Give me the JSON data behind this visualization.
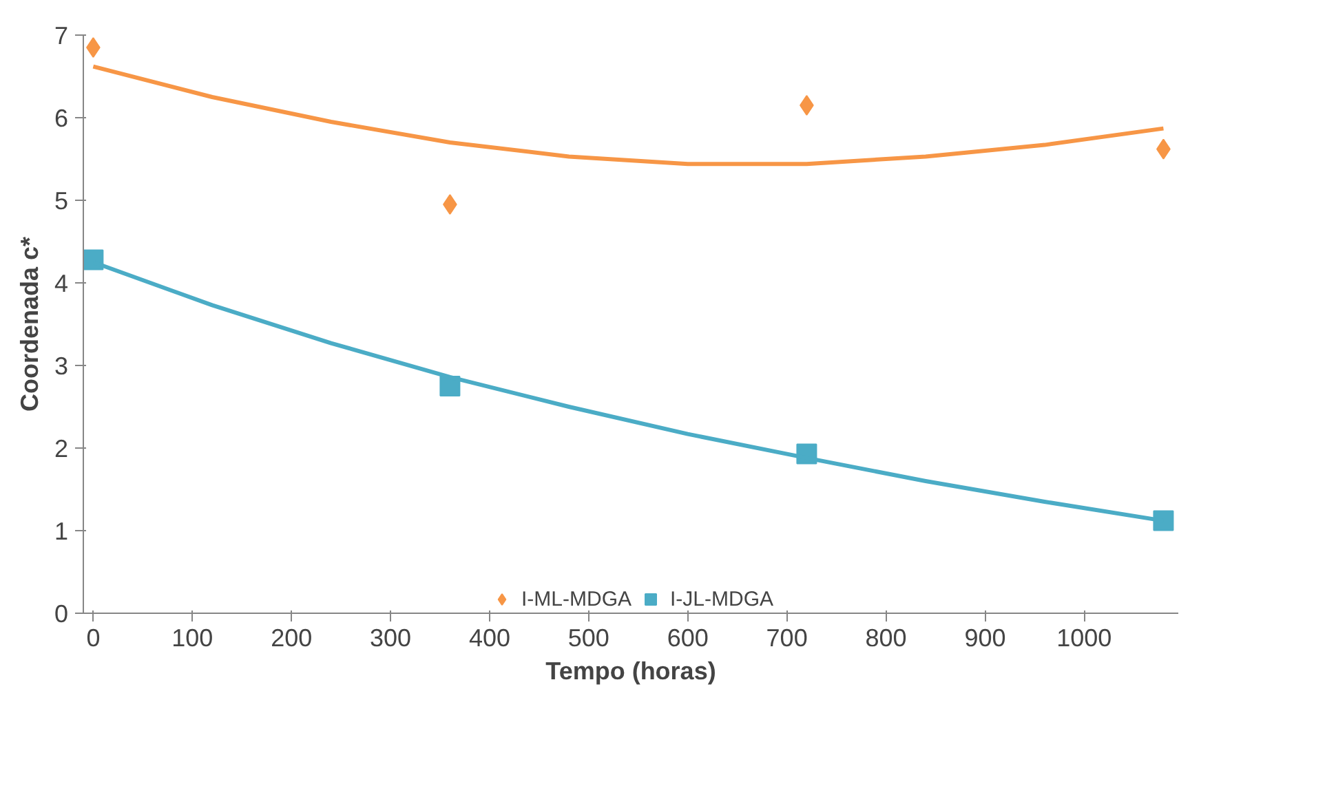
{
  "chart_data": {
    "type": "scatter",
    "xlabel": "Tempo (horas)",
    "ylabel": "Coordenada c*",
    "xlim": [
      -10,
      1095
    ],
    "ylim": [
      0,
      7
    ],
    "xticks": [
      0,
      100,
      200,
      300,
      400,
      500,
      600,
      700,
      800,
      900,
      1000
    ],
    "yticks": [
      0,
      1,
      2,
      3,
      4,
      5,
      6,
      7
    ],
    "grid": false,
    "legend": "bottom",
    "series": [
      {
        "name": "I-ML-MDGA",
        "color": "#f79646",
        "marker": "diamond",
        "x": [
          0,
          360,
          720,
          1080
        ],
        "values": [
          6.85,
          4.95,
          6.15,
          5.62
        ]
      },
      {
        "name": "I-JL-MDGA",
        "color": "#4bacc6",
        "marker": "square",
        "x": [
          0,
          360,
          720,
          1080
        ],
        "values": [
          4.28,
          2.75,
          1.93,
          1.12
        ]
      },
      {
        "type": "line",
        "color": "#f79646",
        "x": [
          0,
          120,
          240,
          360,
          480,
          600,
          720,
          840,
          960,
          1080
        ],
        "values": [
          6.62,
          6.25,
          5.95,
          5.7,
          5.53,
          5.44,
          5.44,
          5.53,
          5.67,
          5.87
        ]
      },
      {
        "type": "line",
        "color": "#4bacc6",
        "x": [
          0,
          120,
          240,
          360,
          480,
          600,
          720,
          840,
          960,
          1080
        ],
        "values": [
          4.25,
          3.73,
          3.27,
          2.86,
          2.5,
          2.17,
          1.88,
          1.6,
          1.35,
          1.12
        ]
      }
    ]
  }
}
